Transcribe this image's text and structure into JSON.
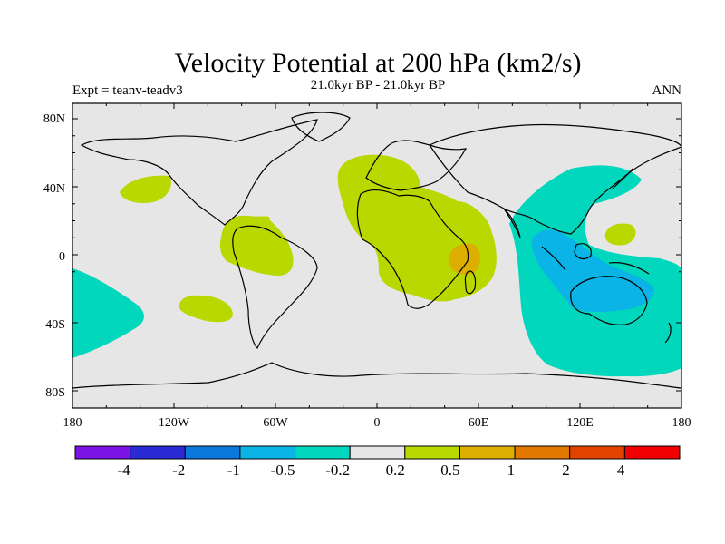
{
  "header": {
    "title": "Velocity Potential at 200 hPa (km2/s)",
    "subtitle": "21.0kyr BP - 21.0kyr BP",
    "left": "Expt = teanv-teadv3",
    "right": "ANN"
  },
  "map": {
    "background_color": "#e6e6e6",
    "lat_ticks": [
      "80N",
      "40N",
      "0",
      "40S",
      "80S"
    ],
    "lon_ticks": [
      "180",
      "120W",
      "60W",
      "0",
      "60E",
      "120E",
      "180"
    ]
  },
  "colorbar": {
    "colors": [
      "#7d14e6",
      "#2a2ad6",
      "#0a78dc",
      "#0ab4e6",
      "#00d7bc",
      "#e6e6e6",
      "#b9d800",
      "#dcae00",
      "#e27800",
      "#e24400",
      "#f00000"
    ],
    "labels": [
      "-4",
      "-2",
      "-1",
      "-0.5",
      "-0.2",
      "0.2",
      "0.5",
      "1",
      "2",
      "4"
    ]
  }
}
